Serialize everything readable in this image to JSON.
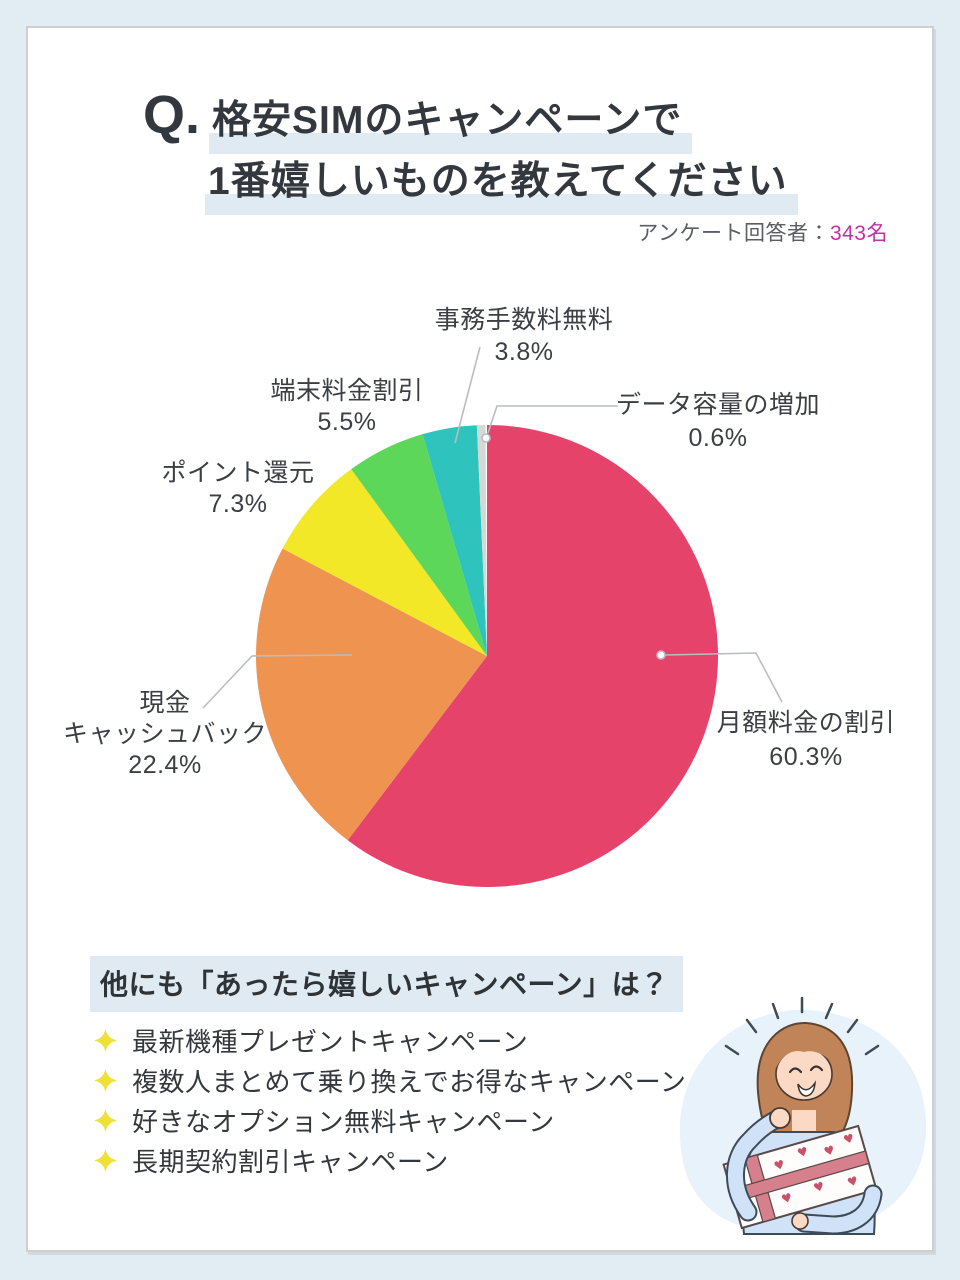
{
  "header": {
    "q_prefix": "Q.",
    "title_line1": "格安SIMのキャンペーンで",
    "title_line2": "1番嬉しいものを教えてください",
    "respondents_label": "アンケート回答者：",
    "respondents_value": "343名"
  },
  "chart_data": {
    "type": "pie",
    "start_angle_deg": 0,
    "direction": "clockwise",
    "legend_position": "around-labels",
    "slices": [
      {
        "label": "月額料金の割引",
        "value": 60.3,
        "pct_text": "60.3%",
        "color": "#e5436a"
      },
      {
        "label": "現金キャッシュバック",
        "label_line1": "現金",
        "label_line2": "キャッシュバック",
        "value": 22.4,
        "pct_text": "22.4%",
        "color": "#ef9350"
      },
      {
        "label": "ポイント還元",
        "value": 7.3,
        "pct_text": "7.3%",
        "color": "#f2e827"
      },
      {
        "label": "端末料金割引",
        "value": 5.5,
        "pct_text": "5.5%",
        "color": "#5cd75a"
      },
      {
        "label": "事務手数料無料",
        "value": 3.8,
        "pct_text": "3.8%",
        "color": "#2fc3be"
      },
      {
        "label": "データ容量の増加",
        "value": 0.6,
        "pct_text": "0.6%",
        "color": "#d5d9d5"
      }
    ]
  },
  "other_campaigns": {
    "heading": "他にも「あったら嬉しいキャンペーン」は？",
    "items": [
      {
        "label": "最新機種プレゼントキャンペーン"
      },
      {
        "label": "複数人まとめて乗り換えでお得なキャンペーン"
      },
      {
        "label": "好きなオプション無料キャンペーン"
      },
      {
        "label": "長期契約割引キャンペーン"
      }
    ]
  },
  "colors": {
    "page_bg": "#e2edf3",
    "card_bg": "#ffffff",
    "title_highlight": "#dfeaf2",
    "respondents_value": "#c231a1",
    "leader_line": "#b9bdc1",
    "bullet_star": "#f0e138"
  }
}
